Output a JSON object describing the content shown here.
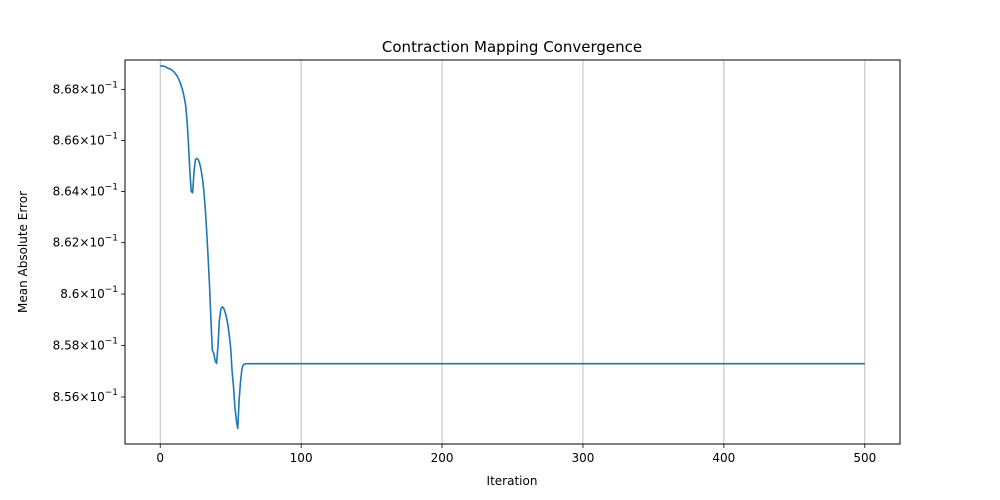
{
  "chart_data": {
    "type": "line",
    "title": "Contraction Mapping Convergence",
    "xlabel": "Iteration",
    "ylabel": "Mean Absolute Error",
    "xlim": [
      -25,
      525
    ],
    "ylim": [
      0.85418,
      0.86916
    ],
    "yscale": "log",
    "grid": "x-only",
    "x_ticks": [
      {
        "value": 0,
        "label": "0"
      },
      {
        "value": 100,
        "label": "100"
      },
      {
        "value": 200,
        "label": "200"
      },
      {
        "value": 300,
        "label": "300"
      },
      {
        "value": 400,
        "label": "400"
      },
      {
        "value": 500,
        "label": "500"
      }
    ],
    "y_ticks": [
      {
        "value": 0.856,
        "mantissa": "8.56",
        "exp": "−1"
      },
      {
        "value": 0.858,
        "mantissa": "8.58",
        "exp": "−1"
      },
      {
        "value": 0.86,
        "mantissa": "8.6",
        "exp": "−1"
      },
      {
        "value": 0.862,
        "mantissa": "8.62",
        "exp": "−1"
      },
      {
        "value": 0.864,
        "mantissa": "8.64",
        "exp": "−1"
      },
      {
        "value": 0.866,
        "mantissa": "8.66",
        "exp": "−1"
      },
      {
        "value": 0.868,
        "mantissa": "8.68",
        "exp": "−1"
      }
    ],
    "series": [
      {
        "color": "#1f77b4",
        "x": [
          0,
          3,
          5,
          8,
          10,
          12,
          14,
          16,
          17,
          18,
          19,
          20,
          21,
          22,
          23,
          24,
          25,
          26,
          27,
          28,
          29,
          30,
          31,
          32,
          33,
          34,
          35,
          36,
          37,
          38,
          39,
          40,
          41,
          42,
          43,
          44,
          45,
          46,
          47,
          48,
          49,
          50,
          51,
          52,
          53,
          54,
          55,
          56,
          57,
          58,
          59,
          60,
          61,
          62,
          65,
          80,
          100,
          200,
          300,
          400,
          500
        ],
        "y": [
          0.86893,
          0.86891,
          0.86885,
          0.86878,
          0.86868,
          0.86853,
          0.8683,
          0.86795,
          0.8677,
          0.8674,
          0.8668,
          0.8659,
          0.8648,
          0.864,
          0.86395,
          0.8648,
          0.86525,
          0.8653,
          0.86525,
          0.8651,
          0.86485,
          0.8645,
          0.864,
          0.8633,
          0.8624,
          0.8614,
          0.8603,
          0.859,
          0.8578,
          0.8577,
          0.8574,
          0.8573,
          0.858,
          0.859,
          0.8594,
          0.8595,
          0.85945,
          0.8593,
          0.8591,
          0.8588,
          0.8584,
          0.8579,
          0.857,
          0.8564,
          0.8556,
          0.8551,
          0.85478,
          0.8559,
          0.8566,
          0.8571,
          0.85725,
          0.85728,
          0.85729,
          0.85729,
          0.85729,
          0.85729,
          0.85729,
          0.85729,
          0.85729,
          0.85729,
          0.85729
        ]
      }
    ]
  }
}
